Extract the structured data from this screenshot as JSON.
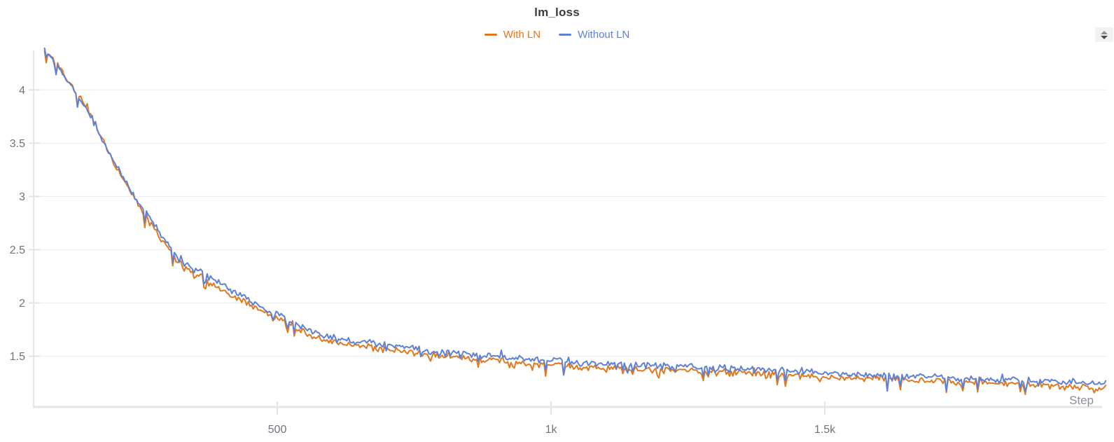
{
  "header": {
    "title": "lm_loss"
  },
  "axes_style": {
    "axis_color": "#e6e6ea",
    "grid_color": "#ececef",
    "tick_color": "#e2e2e6",
    "tick_label_color": "#73727e",
    "step_label_color": "#8e8d96"
  },
  "controls": {
    "stepper_icon": "up-down-arrows"
  },
  "chart_data": {
    "type": "line",
    "title": "lm_loss",
    "xlabel": "Step",
    "ylabel": "",
    "grid": "horizontal",
    "legend_position": "top-center",
    "x_domain": [
      55,
      2014
    ],
    "y_domain": [
      1.03,
      4.37
    ],
    "x_ticks": [
      {
        "value": 500,
        "label": "500"
      },
      {
        "value": 1000,
        "label": "1k"
      },
      {
        "value": 1500,
        "label": "1.5k"
      }
    ],
    "y_ticks": [
      {
        "value": 4,
        "label": "4"
      },
      {
        "value": 3.5,
        "label": "3.5"
      },
      {
        "value": 3,
        "label": "3"
      },
      {
        "value": 2.5,
        "label": "2.5"
      },
      {
        "value": 2,
        "label": "2"
      },
      {
        "value": 1.5,
        "label": "1.5"
      }
    ],
    "noise": {
      "amplitude": 0.035,
      "sample_interval": 3,
      "dip_depth": 0.11
    },
    "series": [
      {
        "name": "With LN",
        "color": "#e0781e",
        "seed": 3,
        "points": [
          [
            75,
            4.35
          ],
          [
            90,
            4.29
          ],
          [
            110,
            4.16
          ],
          [
            130,
            4.0
          ],
          [
            150,
            3.85
          ],
          [
            170,
            3.65
          ],
          [
            190,
            3.44
          ],
          [
            210,
            3.24
          ],
          [
            230,
            3.06
          ],
          [
            250,
            2.89
          ],
          [
            270,
            2.74
          ],
          [
            290,
            2.58
          ],
          [
            313,
            2.42
          ],
          [
            335,
            2.32
          ],
          [
            360,
            2.25
          ],
          [
            380,
            2.17
          ],
          [
            400,
            2.12
          ],
          [
            420,
            2.06
          ],
          [
            441,
            2.01
          ],
          [
            460,
            1.94
          ],
          [
            480,
            1.89
          ],
          [
            500,
            1.85
          ],
          [
            520,
            1.8
          ],
          [
            540,
            1.75
          ],
          [
            569,
            1.67
          ],
          [
            600,
            1.64
          ],
          [
            630,
            1.61
          ],
          [
            660,
            1.59
          ],
          [
            690,
            1.57
          ],
          [
            720,
            1.55
          ],
          [
            750,
            1.53
          ],
          [
            780,
            1.51
          ],
          [
            810,
            1.5
          ],
          [
            840,
            1.48
          ],
          [
            870,
            1.47
          ],
          [
            900,
            1.46
          ],
          [
            930,
            1.44
          ],
          [
            960,
            1.43
          ],
          [
            1000,
            1.42
          ],
          [
            1040,
            1.4
          ],
          [
            1081,
            1.39
          ],
          [
            1120,
            1.39
          ],
          [
            1160,
            1.38
          ],
          [
            1200,
            1.37
          ],
          [
            1240,
            1.37
          ],
          [
            1280,
            1.36
          ],
          [
            1320,
            1.35
          ],
          [
            1360,
            1.34
          ],
          [
            1400,
            1.33
          ],
          [
            1440,
            1.32
          ],
          [
            1480,
            1.31
          ],
          [
            1520,
            1.3
          ],
          [
            1560,
            1.3
          ],
          [
            1600,
            1.29
          ],
          [
            1640,
            1.28
          ],
          [
            1680,
            1.27
          ],
          [
            1720,
            1.26
          ],
          [
            1760,
            1.26
          ],
          [
            1800,
            1.25
          ],
          [
            1848,
            1.24
          ],
          [
            1890,
            1.23
          ],
          [
            1930,
            1.22
          ],
          [
            1970,
            1.21
          ],
          [
            2014,
            1.2
          ]
        ]
      },
      {
        "name": "Without LN",
        "color": "#5e81d6",
        "seed": 11,
        "points": [
          [
            75,
            4.37
          ],
          [
            90,
            4.27
          ],
          [
            110,
            4.13
          ],
          [
            130,
            3.98
          ],
          [
            150,
            3.83
          ],
          [
            170,
            3.63
          ],
          [
            190,
            3.43
          ],
          [
            210,
            3.25
          ],
          [
            230,
            3.08
          ],
          [
            250,
            2.92
          ],
          [
            270,
            2.78
          ],
          [
            290,
            2.62
          ],
          [
            313,
            2.46
          ],
          [
            335,
            2.36
          ],
          [
            360,
            2.3
          ],
          [
            380,
            2.22
          ],
          [
            400,
            2.17
          ],
          [
            420,
            2.11
          ],
          [
            441,
            2.06
          ],
          [
            460,
            1.98
          ],
          [
            480,
            1.93
          ],
          [
            500,
            1.89
          ],
          [
            520,
            1.84
          ],
          [
            540,
            1.79
          ],
          [
            569,
            1.71
          ],
          [
            600,
            1.68
          ],
          [
            630,
            1.65
          ],
          [
            660,
            1.63
          ],
          [
            690,
            1.61
          ],
          [
            720,
            1.59
          ],
          [
            750,
            1.57
          ],
          [
            780,
            1.55
          ],
          [
            810,
            1.54
          ],
          [
            840,
            1.52
          ],
          [
            870,
            1.51
          ],
          [
            900,
            1.5
          ],
          [
            930,
            1.48
          ],
          [
            960,
            1.47
          ],
          [
            1000,
            1.46
          ],
          [
            1040,
            1.44
          ],
          [
            1081,
            1.43
          ],
          [
            1120,
            1.43
          ],
          [
            1160,
            1.42
          ],
          [
            1200,
            1.41
          ],
          [
            1240,
            1.41
          ],
          [
            1280,
            1.4
          ],
          [
            1320,
            1.39
          ],
          [
            1360,
            1.38
          ],
          [
            1400,
            1.37
          ],
          [
            1440,
            1.36
          ],
          [
            1480,
            1.35
          ],
          [
            1520,
            1.34
          ],
          [
            1560,
            1.33
          ],
          [
            1600,
            1.32
          ],
          [
            1640,
            1.31
          ],
          [
            1680,
            1.31
          ],
          [
            1720,
            1.3
          ],
          [
            1760,
            1.29
          ],
          [
            1800,
            1.28
          ],
          [
            1848,
            1.28
          ],
          [
            1890,
            1.27
          ],
          [
            1930,
            1.26
          ],
          [
            1970,
            1.25
          ],
          [
            2014,
            1.24
          ]
        ]
      }
    ]
  }
}
